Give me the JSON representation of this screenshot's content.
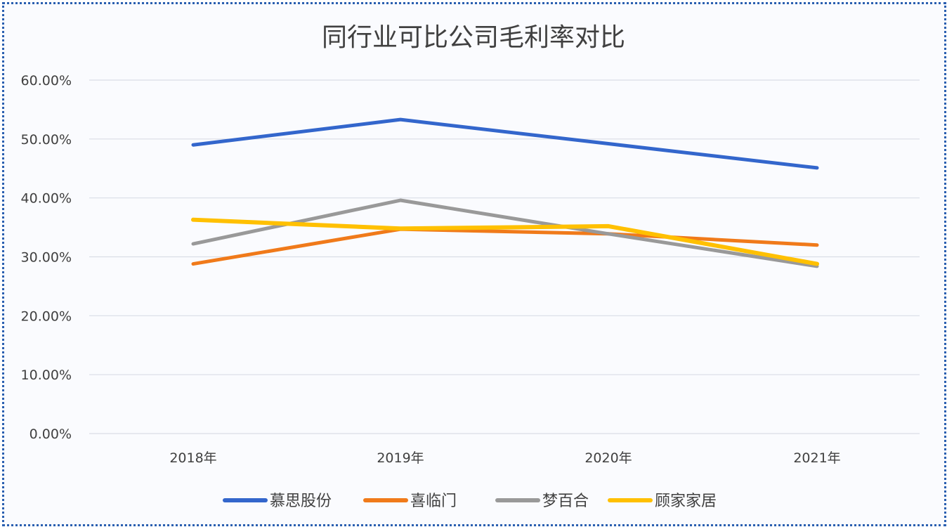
{
  "chart_data": {
    "type": "line",
    "title": "同行业可比公司毛利率对比",
    "categories": [
      "2018年",
      "2019年",
      "2020年",
      "2021年"
    ],
    "ylim": [
      0,
      60
    ],
    "yticks": [
      "0.00%",
      "10.00%",
      "20.00%",
      "30.00%",
      "40.00%",
      "50.00%",
      "60.00%"
    ],
    "grid": true,
    "legend": "bottom",
    "series": [
      {
        "name": "慕思股份",
        "color": "#3366cc",
        "values": [
          49.0,
          53.3,
          49.2,
          45.1
        ]
      },
      {
        "name": "喜临门",
        "color": "#f07a1a",
        "values": [
          28.8,
          34.7,
          33.9,
          32.0
        ]
      },
      {
        "name": "梦百合",
        "color": "#999999",
        "values": [
          32.2,
          39.6,
          33.9,
          28.4
        ]
      },
      {
        "name": "顾家家居",
        "color": "#ffc000",
        "values": [
          36.3,
          34.8,
          35.2,
          28.8
        ]
      }
    ]
  }
}
